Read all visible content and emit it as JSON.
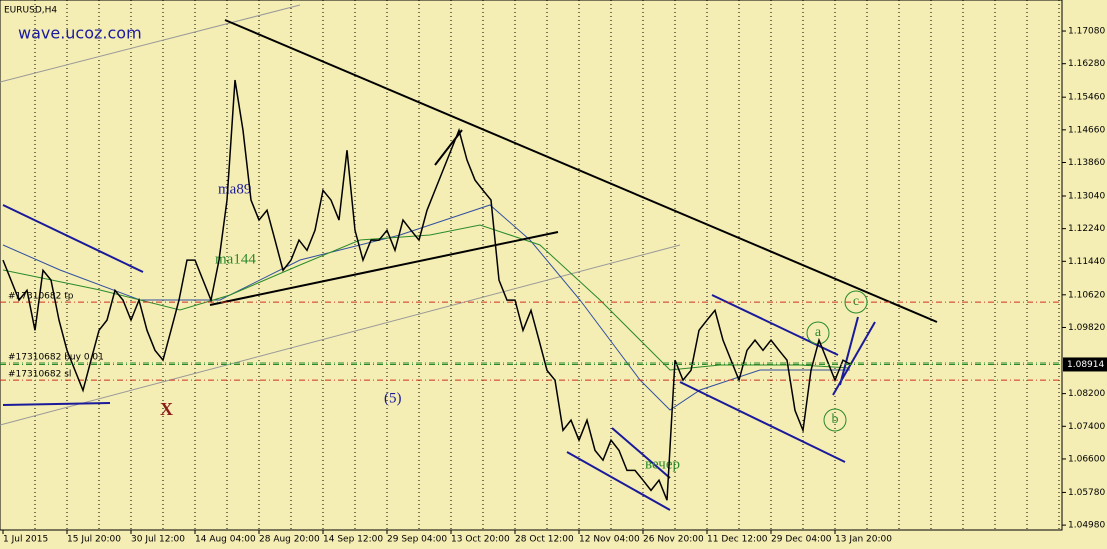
{
  "chart_data": {
    "type": "line",
    "title": "EURUSD,H4",
    "watermark": "wave.ucoz.com",
    "color": "#000000",
    "categories": [
      "1 Jul 2015",
      null,
      null,
      null,
      null,
      null,
      null,
      null,
      "15 Jul 20:00",
      null,
      null,
      null,
      null,
      null,
      null,
      null,
      "30 Jul 12:00",
      null,
      null,
      null,
      null,
      null,
      null,
      null,
      "14 Aug 04:00",
      null,
      null,
      null,
      null,
      null,
      null,
      null,
      "28 Aug 20:00",
      null,
      null,
      null,
      null,
      null,
      null,
      null,
      "14 Sep 12:00",
      null,
      null,
      null,
      null,
      null,
      null,
      null,
      "29 Sep 04:00",
      null,
      null,
      null,
      null,
      null,
      null,
      null,
      "13 Oct 20:00",
      null,
      null,
      null,
      null,
      null,
      null,
      null,
      "28 Oct 12:00",
      null,
      null,
      null,
      null,
      null,
      null,
      null,
      "12 Nov 04:00",
      null,
      null,
      null,
      null,
      null,
      null,
      null,
      "26 Nov 20:00",
      null,
      null,
      null,
      null,
      null,
      null,
      null,
      "11 Dec 12:00",
      null,
      null,
      null,
      null,
      null,
      null,
      null,
      "29 Dec 04:00",
      null,
      null,
      null,
      null,
      null,
      null,
      null,
      "13 Jan 20:00",
      null,
      null
    ],
    "values": [
      1.1147,
      1.1098,
      1.1049,
      1.1073,
      1.0975,
      1.1122,
      1.1098,
      1.1,
      1.0926,
      1.0877,
      1.0828,
      1.0902,
      1.0975,
      1.1,
      1.1073,
      1.1049,
      1.1,
      1.1049,
      1.0975,
      1.0926,
      1.0902,
      1.0975,
      1.1049,
      1.1147,
      1.1147,
      1.1098,
      1.1049,
      1.1147,
      1.1294,
      1.1588,
      1.1465,
      1.1294,
      1.1245,
      1.1269,
      1.1196,
      1.1122,
      1.1147,
      1.1196,
      1.1171,
      1.122,
      1.1318,
      1.1294,
      1.1245,
      1.1416,
      1.122,
      1.1147,
      1.1196,
      1.1196,
      1.122,
      1.1171,
      1.1245,
      1.122,
      1.1196,
      1.1269,
      1.1318,
      1.1367,
      1.1416,
      1.1465,
      1.1392,
      1.1343,
      1.1318,
      1.1294,
      1.1098,
      1.1049,
      1.1049,
      1.0975,
      1.1024,
      1.0951,
      1.0877,
      1.0853,
      1.073,
      1.0755,
      1.0706,
      1.0755,
      1.0681,
      1.0657,
      1.0706,
      1.0681,
      1.0632,
      1.0632,
      1.0608,
      1.0583,
      1.0608,
      1.0559,
      1.0902,
      1.0853,
      1.0877,
      1.0975,
      1.1,
      1.1024,
      1.0951,
      1.0902,
      1.0853,
      1.0926,
      1.0951,
      1.0926,
      1.0951,
      1.0926,
      1.0902,
      1.0779,
      1.073,
      1.0877,
      1.0951,
      1.0902,
      1.0853,
      1.0902,
      1.0891
    ],
    "ylim": [
      1.0486,
      1.1784
    ],
    "yticks": [
      {
        "value": 1.1708,
        "label": "1.17080"
      },
      {
        "value": 1.1628,
        "label": "1.16280"
      },
      {
        "value": 1.1546,
        "label": "1.15460"
      },
      {
        "value": 1.1466,
        "label": "1.14660"
      },
      {
        "value": 1.1386,
        "label": "1.13860"
      },
      {
        "value": 1.1304,
        "label": "1.13040"
      },
      {
        "value": 1.1224,
        "label": "1.12240"
      },
      {
        "value": 1.1144,
        "label": "1.11440"
      },
      {
        "value": 1.1062,
        "label": "1.10620"
      },
      {
        "value": 1.0982,
        "label": "1.09820"
      },
      {
        "value": 1.082,
        "label": "1.08200"
      },
      {
        "value": 1.074,
        "label": "1.07400"
      },
      {
        "value": 1.066,
        "label": "1.06600"
      },
      {
        "value": 1.0578,
        "label": "1.05780"
      },
      {
        "value": 1.0498,
        "label": "1.04980"
      }
    ],
    "current_price": 1.08914,
    "orders": [
      {
        "label": "#17310682 tp",
        "price": 1.1044,
        "color": "#d03020"
      },
      {
        "label": "#17310682 buy 0.01",
        "price": 1.0895,
        "color": "#2a8a2a"
      },
      {
        "label": "#17310682 sl",
        "price": 1.0853,
        "color": "#d03020"
      }
    ],
    "annotations": [
      "ma89",
      "ma144",
      "X",
      "(5)",
      "вечер",
      "a",
      "b",
      "c"
    ]
  }
}
